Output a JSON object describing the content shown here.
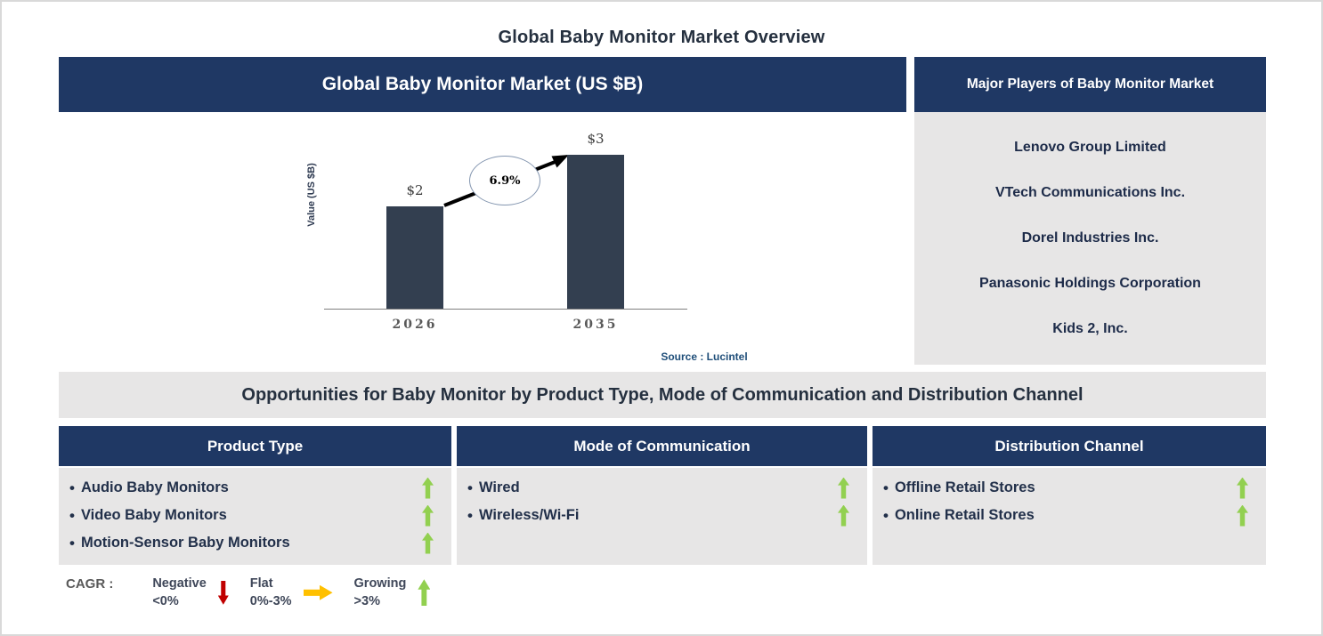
{
  "page": {
    "title": "Global Baby Monitor Market Overview"
  },
  "market_chart": {
    "header": "Global Baby Monitor Market (US $B)",
    "source": "Source : Lucintel"
  },
  "chart_data": {
    "type": "bar",
    "categories": [
      "2026",
      "2035"
    ],
    "values": [
      2,
      3
    ],
    "value_labels": [
      "$2",
      "$3"
    ],
    "title": "Global Baby Monitor Market (US $B)",
    "xlabel": "",
    "ylabel": "Value (US $B)",
    "ylim": [
      0,
      3.5
    ],
    "grid": false,
    "bar_color": "#333F50",
    "annotation": "6.9%",
    "annotation_meaning": "CAGR between 2026 and 2035",
    "source": "Source : Lucintel"
  },
  "major_players": {
    "header": "Major Players of Baby Monitor Market",
    "companies": [
      "Lenovo Group Limited",
      "VTech Communications Inc.",
      "Dorel Industries Inc.",
      "Panasonic Holdings Corporation",
      "Kids 2, Inc."
    ]
  },
  "opportunities": {
    "banner": "Opportunities for Baby Monitor by Product Type, Mode of Communication and Distribution Channel",
    "columns": [
      {
        "header": "Product Type",
        "items": [
          {
            "label": "Audio Baby Monitors",
            "trend": "growing"
          },
          {
            "label": "Video Baby Monitors",
            "trend": "growing"
          },
          {
            "label": "Motion-Sensor Baby Monitors",
            "trend": "growing"
          }
        ]
      },
      {
        "header": "Mode of Communication",
        "items": [
          {
            "label": "Wired",
            "trend": "growing"
          },
          {
            "label": "Wireless/Wi-Fi",
            "trend": "growing"
          }
        ]
      },
      {
        "header": "Distribution Channel",
        "items": [
          {
            "label": "Offline Retail Stores",
            "trend": "growing"
          },
          {
            "label": "Online Retail Stores",
            "trend": "growing"
          }
        ]
      }
    ]
  },
  "legend": {
    "label": "CAGR :",
    "entries": [
      {
        "name": "Negative",
        "range": "<0%",
        "direction": "down",
        "color": "#C00000"
      },
      {
        "name": "Flat",
        "range": "0%-3%",
        "direction": "right",
        "color": "#FFC000"
      },
      {
        "name": "Growing",
        "range": ">3%",
        "direction": "up",
        "color": "#92D050"
      }
    ]
  },
  "colors": {
    "header_navy": "#1F3864",
    "panel_gray": "#E7E6E6",
    "bar_fill": "#333F50",
    "growing_green": "#92D050",
    "flat_yellow": "#FFC000",
    "negative_red": "#C00000",
    "source_blue": "#1F4E79"
  }
}
